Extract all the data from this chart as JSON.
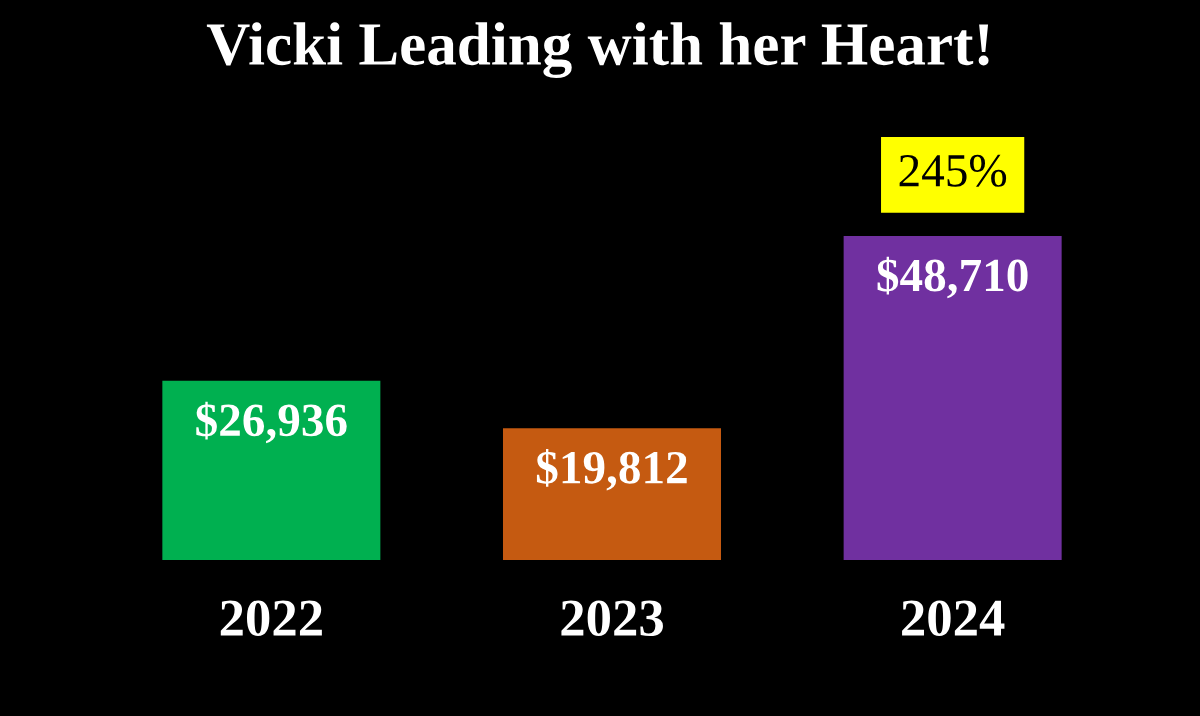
{
  "chart_data": {
    "type": "bar",
    "title": "Vicki Leading with her Heart!",
    "categories": [
      "2022",
      "2023",
      "2024"
    ],
    "values": [
      26936,
      19812,
      48710
    ],
    "colors": [
      "#00b050",
      "#c55a11",
      "#7030a0"
    ],
    "value_labels": [
      "$26,936",
      "$19,812",
      "$48,710"
    ],
    "annotations": [
      "245%"
    ],
    "grid": false,
    "legend": false
  }
}
